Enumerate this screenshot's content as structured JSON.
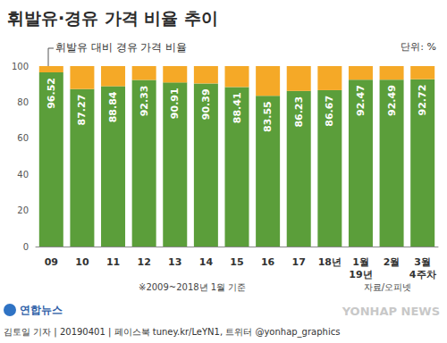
{
  "chart_data": {
    "type": "bar",
    "title": "휘발유·경유 가격 비율 추이",
    "unit": "단위: %",
    "categories": [
      "09",
      "10",
      "11",
      "12",
      "13",
      "14",
      "15",
      "16",
      "17",
      "18년",
      "1월\n19년",
      "2월",
      "3월\n4주차"
    ],
    "series": [
      {
        "name": "휘발유 대비 경유 가격 비율",
        "color": "#5b9e3a",
        "values": [
          96.52,
          87.27,
          88.84,
          92.33,
          90.91,
          90.39,
          88.41,
          83.55,
          86.23,
          86.67,
          92.47,
          92.49,
          92.72
        ]
      },
      {
        "color": "#f5a927",
        "values": [
          3.48,
          12.73,
          11.16,
          7.67,
          9.09,
          9.61,
          11.59,
          16.45,
          13.77,
          13.33,
          7.53,
          7.51,
          7.28
        ]
      }
    ],
    "stacked": true,
    "data_labels": true,
    "grid": false,
    "ylim": [
      0,
      100
    ],
    "yticks": [
      0,
      20,
      40,
      60,
      80,
      100
    ],
    "note": "※2009~2018년 1월 기준",
    "source": "자료/오피넷",
    "publisher": "연합뉴스",
    "credit": "김토일 기자 | 20190401 | 페이스북 tuney.kr/LeYN1, 트위터 @yonhap_graphics",
    "watermark": "YONHAP NEWS"
  }
}
